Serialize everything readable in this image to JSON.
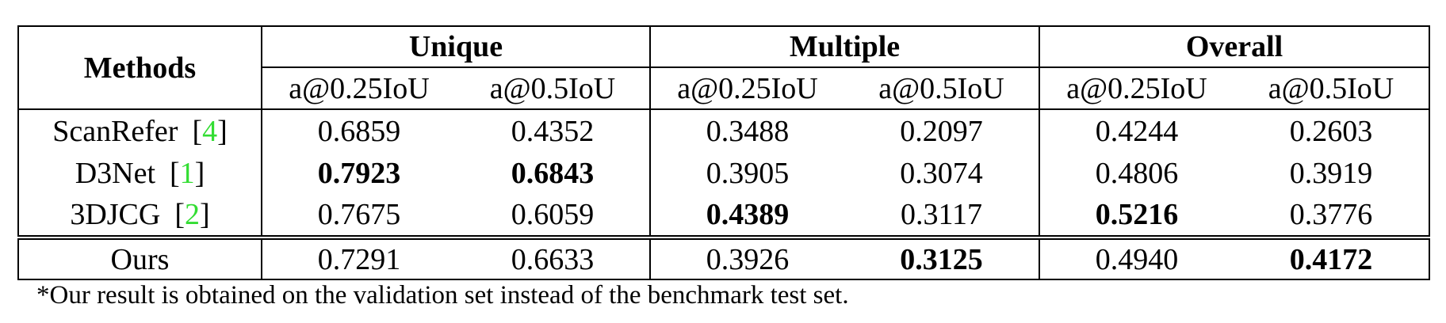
{
  "table": {
    "methods_header": "Methods",
    "groups": [
      "Unique",
      "Multiple",
      "Overall"
    ],
    "subheaders": [
      "a@0.25IoU",
      "a@0.5IoU",
      "a@0.25IoU",
      "a@0.5IoU",
      "a@0.25IoU",
      "a@0.5IoU"
    ],
    "rows": [
      {
        "method": "ScanRefer",
        "ref": "4",
        "values": [
          "0.6859",
          "0.4352",
          "0.3488",
          "0.2097",
          "0.4244",
          "0.2603"
        ],
        "bold": [
          false,
          false,
          false,
          false,
          false,
          false
        ]
      },
      {
        "method": "D3Net",
        "ref": "1",
        "values": [
          "0.7923",
          "0.6843",
          "0.3905",
          "0.3074",
          "0.4806",
          "0.3919"
        ],
        "bold": [
          true,
          true,
          false,
          false,
          false,
          false
        ]
      },
      {
        "method": "3DJCG",
        "ref": "2",
        "values": [
          "0.7675",
          "0.6059",
          "0.4389",
          "0.3117",
          "0.5216",
          "0.3776"
        ],
        "bold": [
          false,
          false,
          true,
          false,
          true,
          false
        ]
      },
      {
        "method": "Ours",
        "ref": "",
        "values": [
          "0.7291",
          "0.6633",
          "0.3926",
          "0.3125",
          "0.4940",
          "0.4172"
        ],
        "bold": [
          false,
          false,
          false,
          true,
          false,
          true
        ]
      }
    ]
  },
  "footnote": "*Our result is obtained on the validation set instead of the benchmark test set.",
  "colors": {
    "reference_link": "#33dd33"
  }
}
